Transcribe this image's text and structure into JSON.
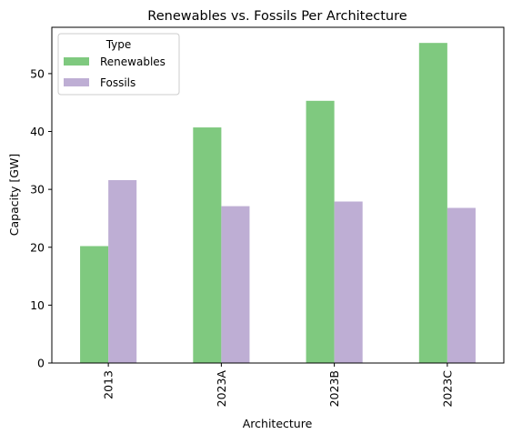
{
  "chart_data": {
    "type": "bar",
    "title": "Renewables vs. Fossils Per Architecture",
    "xlabel": "Architecture",
    "ylabel": "Capacity [GW]",
    "categories": [
      "2013",
      "2023A",
      "2023B",
      "2023C"
    ],
    "ylim": [
      0,
      58
    ],
    "yticks": [
      0,
      10,
      20,
      30,
      40,
      50
    ],
    "legend": {
      "title": "Type",
      "placement": "top-left"
    },
    "grid": false,
    "series": [
      {
        "name": "Renewables",
        "color": "#7fc97f",
        "values": [
          20.2,
          40.7,
          45.3,
          55.3
        ]
      },
      {
        "name": "Fossils",
        "color": "#beaed4",
        "values": [
          31.6,
          27.1,
          27.9,
          26.8
        ]
      }
    ]
  }
}
